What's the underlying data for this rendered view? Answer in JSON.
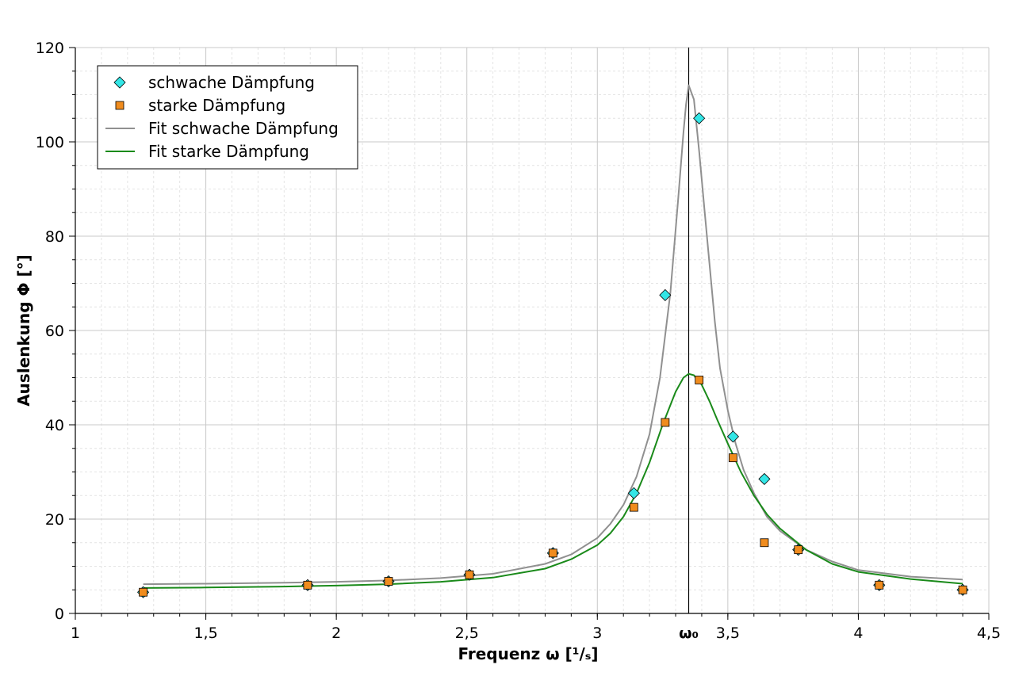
{
  "chart_data": {
    "type": "scatter",
    "xlabel": "Frequenz ω [¹/ₛ]",
    "ylabel": "Auslenkung Φ [°]",
    "xlim": [
      1,
      4.5
    ],
    "ylim": [
      0,
      120
    ],
    "x_ticks": [
      {
        "value": 1,
        "label": "1"
      },
      {
        "value": 1.5,
        "label": "1,5"
      },
      {
        "value": 2,
        "label": "2"
      },
      {
        "value": 2.5,
        "label": "2,5"
      },
      {
        "value": 3,
        "label": "3"
      },
      {
        "value": 3.5,
        "label": "3,5"
      },
      {
        "value": 4,
        "label": "4"
      },
      {
        "value": 4.5,
        "label": "4,5"
      }
    ],
    "y_ticks": [
      {
        "value": 0,
        "label": "0"
      },
      {
        "value": 20,
        "label": "20"
      },
      {
        "value": 40,
        "label": "40"
      },
      {
        "value": 60,
        "label": "60"
      },
      {
        "value": 80,
        "label": "80"
      },
      {
        "value": 100,
        "label": "100"
      },
      {
        "value": 120,
        "label": "120"
      }
    ],
    "grid": true,
    "legend_position": "top-left",
    "reference_line": {
      "x": 3.35,
      "label": "ω₀",
      "color": "#000000"
    },
    "series": [
      {
        "name": "schwache Dämpfung",
        "kind": "points",
        "marker": "diamond",
        "color": "#33e6e6",
        "x": [
          1.26,
          1.89,
          2.2,
          2.51,
          2.83,
          3.14,
          3.26,
          3.39,
          3.52,
          3.64,
          3.77,
          4.08,
          4.4
        ],
        "y": [
          4.5,
          6.0,
          6.8,
          8.2,
          12.8,
          25.5,
          67.5,
          105.0,
          37.5,
          28.5,
          13.5,
          6.0,
          5.0
        ]
      },
      {
        "name": "starke Dämpfung",
        "kind": "points",
        "marker": "square",
        "color": "#f08c1e",
        "x": [
          1.26,
          1.89,
          2.2,
          2.51,
          2.83,
          3.14,
          3.26,
          3.39,
          3.52,
          3.64,
          3.77,
          4.08,
          4.4
        ],
        "y": [
          4.5,
          6.0,
          6.8,
          8.2,
          12.8,
          22.5,
          40.5,
          49.5,
          33.0,
          15.0,
          13.5,
          6.0,
          5.0
        ]
      },
      {
        "name": "Fit schwache Dämpfung",
        "kind": "line",
        "color": "#909090",
        "x": [
          1.26,
          1.5,
          1.8,
          2.0,
          2.2,
          2.4,
          2.6,
          2.8,
          2.9,
          3.0,
          3.05,
          3.1,
          3.15,
          3.2,
          3.24,
          3.28,
          3.31,
          3.33,
          3.34,
          3.35,
          3.37,
          3.39,
          3.41,
          3.43,
          3.45,
          3.47,
          3.5,
          3.53,
          3.56,
          3.6,
          3.65,
          3.7,
          3.8,
          3.9,
          4.0,
          4.2,
          4.4
        ],
        "y": [
          6.2,
          6.3,
          6.5,
          6.7,
          7.0,
          7.5,
          8.4,
          10.5,
          12.5,
          16.0,
          19.0,
          23.0,
          29.0,
          38.0,
          50.0,
          68.0,
          88.0,
          102.0,
          108.0,
          112.0,
          109.0,
          98.0,
          86.0,
          74.0,
          62.0,
          52.0,
          43.0,
          36.0,
          30.5,
          25.5,
          20.5,
          17.5,
          13.5,
          11.0,
          9.2,
          7.8,
          7.2
        ]
      },
      {
        "name": "Fit starke Dämpfung",
        "kind": "line",
        "color": "#1a8a1a",
        "x": [
          1.26,
          1.5,
          1.8,
          2.0,
          2.2,
          2.4,
          2.6,
          2.8,
          2.9,
          3.0,
          3.05,
          3.1,
          3.15,
          3.2,
          3.25,
          3.3,
          3.33,
          3.35,
          3.37,
          3.4,
          3.43,
          3.46,
          3.5,
          3.55,
          3.6,
          3.65,
          3.7,
          3.8,
          3.9,
          4.0,
          4.2,
          4.4
        ],
        "y": [
          5.4,
          5.5,
          5.7,
          5.9,
          6.2,
          6.7,
          7.6,
          9.5,
          11.5,
          14.5,
          17.0,
          20.5,
          25.5,
          32.0,
          40.0,
          47.0,
          50.0,
          50.8,
          50.5,
          48.5,
          45.0,
          41.0,
          36.0,
          30.0,
          25.0,
          21.0,
          18.0,
          13.5,
          10.5,
          8.8,
          7.3,
          6.3
        ]
      }
    ]
  }
}
